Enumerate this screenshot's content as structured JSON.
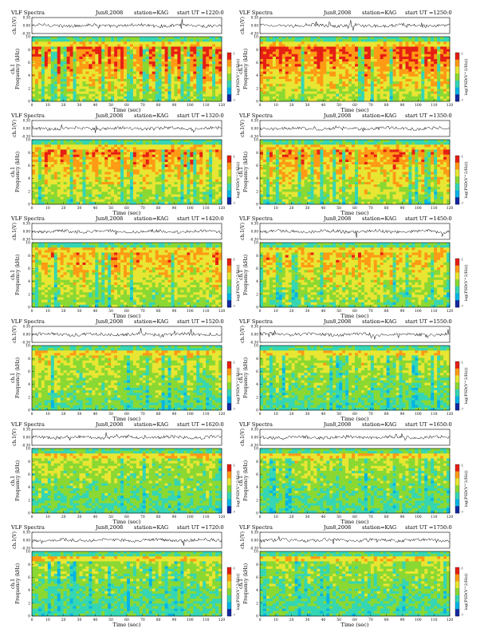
{
  "page": {
    "colors": {
      "spectrogram": [
        "#1428a0",
        "#00b4e6",
        "#34d6b4",
        "#8ad832",
        "#e8e632",
        "#ff9a14",
        "#e61e14"
      ],
      "trace": "#000000",
      "background": "#ffffff"
    }
  },
  "chart_data": [
    {
      "type": "heatmap",
      "title": "VLF Spectra",
      "date": "Jun8,2008",
      "station": "station=KAG",
      "start": "start  UT =1220:0",
      "ylabel_top": "ch.1(V)",
      "yticks_top": [
        "0.30",
        "0.00",
        "-0.30"
      ],
      "ylim_top": [
        -0.3,
        0.3
      ],
      "ylabel": "Frequency (kHz)",
      "ylabel_ch": "ch.1",
      "yticks": [
        "0",
        "2",
        "4",
        "6",
        "8",
        "10"
      ],
      "ylim": [
        0,
        10
      ],
      "xlabel": "Time (sec)",
      "xticks": [
        "0",
        "10",
        "20",
        "30",
        "40",
        "50",
        "60",
        "70",
        "80",
        "90",
        "100",
        "110",
        "120"
      ],
      "xlim": [
        0,
        120
      ],
      "colorbar_label": "log(PSD(V^2/Hz))",
      "colorbar_ticks": [
        "-1",
        "-7"
      ],
      "activity": 0.85
    },
    {
      "type": "heatmap",
      "title": "VLF Spectra",
      "date": "Jun8,2008",
      "station": "station=KAG",
      "start": "start  UT =1250:0",
      "ylabel_top": "ch.1(V)",
      "yticks_top": [
        "0.30",
        "0.00",
        "-0.30"
      ],
      "ylim_top": [
        -0.3,
        0.3
      ],
      "ylabel": "Frequency (kHz)",
      "ylabel_ch": "ch.1",
      "yticks": [
        "0",
        "2",
        "4",
        "6",
        "8",
        "10"
      ],
      "ylim": [
        0,
        10
      ],
      "xlabel": "Time (sec)",
      "xticks": [
        "0",
        "10",
        "20",
        "30",
        "40",
        "50",
        "60",
        "70",
        "80",
        "90",
        "100",
        "110",
        "120"
      ],
      "xlim": [
        0,
        120
      ],
      "colorbar_label": "log(PSD(V^2/Hz))",
      "colorbar_ticks": [
        "-1",
        "-7"
      ],
      "activity": 0.85
    },
    {
      "type": "heatmap",
      "title": "VLF Spectra",
      "date": "Jun8,2008",
      "station": "station=KAG",
      "start": "start  UT =1320:0",
      "ylabel_top": "ch.1(V)",
      "yticks_top": [
        "0.30",
        "0.00",
        "-0.30"
      ],
      "ylim_top": [
        -0.3,
        0.3
      ],
      "ylabel": "Frequency (kHz)",
      "ylabel_ch": "ch.1",
      "yticks": [
        "0",
        "2",
        "4",
        "6",
        "8",
        "10"
      ],
      "ylim": [
        0,
        10
      ],
      "xlabel": "Time (sec)",
      "xticks": [
        "0",
        "10",
        "20",
        "30",
        "40",
        "50",
        "60",
        "70",
        "80",
        "90",
        "100",
        "110",
        "120"
      ],
      "xlim": [
        0,
        120
      ],
      "colorbar_label": "log(PSD(V^2/Hz))",
      "colorbar_ticks": [
        "-1",
        "-7"
      ],
      "activity": 0.72
    },
    {
      "type": "heatmap",
      "title": "VLF Spectra",
      "date": "Jun8,2008",
      "station": "station=KAG",
      "start": "start  UT =1350:0",
      "ylabel_top": "ch.1(V)",
      "yticks_top": [
        "0.30",
        "0.00",
        "-0.30"
      ],
      "ylim_top": [
        -0.3,
        0.3
      ],
      "ylabel": "Frequency (kHz)",
      "ylabel_ch": "ch.1",
      "yticks": [
        "0",
        "2",
        "4",
        "6",
        "8",
        "10"
      ],
      "ylim": [
        0,
        10
      ],
      "xlabel": "Time (sec)",
      "xticks": [
        "0",
        "10",
        "20",
        "30",
        "40",
        "50",
        "60",
        "70",
        "80",
        "90",
        "100",
        "110",
        "120"
      ],
      "xlim": [
        0,
        120
      ],
      "colorbar_label": "log(PSD(V^2/Hz))",
      "colorbar_ticks": [
        "-1",
        "-7"
      ],
      "activity": 0.72
    },
    {
      "type": "heatmap",
      "title": "VLF Spectra",
      "date": "Jun8,2008",
      "station": "station=KAG",
      "start": "start  UT =1420:0",
      "ylabel_top": "ch.1(V)",
      "yticks_top": [
        "0.30",
        "0.00",
        "-0.30"
      ],
      "ylim_top": [
        -0.3,
        0.3
      ],
      "ylabel": "Frequency (kHz)",
      "ylabel_ch": "ch.1",
      "yticks": [
        "0",
        "2",
        "4",
        "6",
        "8",
        "10"
      ],
      "ylim": [
        0,
        10
      ],
      "xlabel": "Time (sec)",
      "xticks": [
        "0",
        "10",
        "20",
        "30",
        "40",
        "50",
        "60",
        "70",
        "80",
        "90",
        "100",
        "110",
        "120"
      ],
      "xlim": [
        0,
        120
      ],
      "colorbar_label": "log(PSD(V^2/Hz))",
      "colorbar_ticks": [
        "-1",
        "-7"
      ],
      "activity": 0.66
    },
    {
      "type": "heatmap",
      "title": "VLF Spectra",
      "date": "Jun8,2008",
      "station": "station=KAG",
      "start": "start  UT =1450:0",
      "ylabel_top": "ch.1(V)",
      "yticks_top": [
        "0.30",
        "0.00",
        "-0.30"
      ],
      "ylim_top": [
        -0.3,
        0.3
      ],
      "ylabel": "Frequency (kHz)",
      "ylabel_ch": "ch.1",
      "yticks": [
        "0",
        "2",
        "4",
        "6",
        "8",
        "10"
      ],
      "ylim": [
        0,
        10
      ],
      "xlabel": "Time (sec)",
      "xticks": [
        "0",
        "10",
        "20",
        "30",
        "40",
        "50",
        "60",
        "70",
        "80",
        "90",
        "100",
        "110",
        "120"
      ],
      "xlim": [
        0,
        120
      ],
      "colorbar_label": "log(PSD(V^2/Hz))",
      "colorbar_ticks": [
        "-1",
        "-7"
      ],
      "activity": 0.64
    },
    {
      "type": "heatmap",
      "title": "VLF Spectra",
      "date": "Jun8,2008",
      "station": "station=KAG",
      "start": "start  UT =1520:0",
      "ylabel_top": "ch.1(V)",
      "yticks_top": [
        "0.30",
        "0.00",
        "-0.30"
      ],
      "ylim_top": [
        -0.3,
        0.3
      ],
      "ylabel": "Frequency (kHz)",
      "ylabel_ch": "ch.1",
      "yticks": [
        "0",
        "2",
        "4",
        "6",
        "8",
        "10"
      ],
      "ylim": [
        0,
        10
      ],
      "xlabel": "Time (sec)",
      "xticks": [
        "0",
        "10",
        "20",
        "30",
        "40",
        "50",
        "60",
        "70",
        "80",
        "90",
        "100",
        "110",
        "120"
      ],
      "xlim": [
        0,
        120
      ],
      "colorbar_label": "log(PSD(V^2/Hz))",
      "colorbar_ticks": [
        "-1",
        "-7"
      ],
      "activity": 0.48
    },
    {
      "type": "heatmap",
      "title": "VLF Spectra",
      "date": "Jun8,2008",
      "station": "station=KAG",
      "start": "start  UT =1550:0",
      "ylabel_top": "ch.1(V)",
      "yticks_top": [
        "0.30",
        "0.00",
        "-0.30"
      ],
      "ylim_top": [
        -0.3,
        0.3
      ],
      "ylabel": "Frequency (kHz)",
      "ylabel_ch": "ch.1",
      "yticks": [
        "0",
        "2",
        "4",
        "6",
        "8",
        "10"
      ],
      "ylim": [
        0,
        10
      ],
      "xlabel": "Time (sec)",
      "xticks": [
        "0",
        "10",
        "20",
        "30",
        "40",
        "50",
        "60",
        "70",
        "80",
        "90",
        "100",
        "110",
        "120"
      ],
      "xlim": [
        0,
        120
      ],
      "colorbar_label": "log(PSD(V^2/Hz))",
      "colorbar_ticks": [
        "-1",
        "-7"
      ],
      "activity": 0.44
    },
    {
      "type": "heatmap",
      "title": "VLF Spectra",
      "date": "Jun8,2008",
      "station": "station=KAG",
      "start": "start  UT =1620:0",
      "ylabel_top": "ch.1(V)",
      "yticks_top": [
        "0.30",
        "0.00",
        "-0.30"
      ],
      "ylim_top": [
        -0.3,
        0.3
      ],
      "ylabel": "Frequency (kHz)",
      "ylabel_ch": "ch.1",
      "yticks": [
        "0",
        "2",
        "4",
        "6",
        "8",
        "10"
      ],
      "ylim": [
        0,
        10
      ],
      "xlabel": "Time (sec)",
      "xticks": [
        "0",
        "10",
        "20",
        "30",
        "40",
        "50",
        "60",
        "70",
        "80",
        "90",
        "100",
        "110",
        "120"
      ],
      "xlim": [
        0,
        120
      ],
      "colorbar_label": "log(PSD(V^2/Hz))",
      "colorbar_ticks": [
        "-1",
        "-7"
      ],
      "activity": 0.4
    },
    {
      "type": "heatmap",
      "title": "VLF Spectra",
      "date": "Jun8,2008",
      "station": "station=KAG",
      "start": "start  UT =1650:0",
      "ylabel_top": "ch.1(V)",
      "yticks_top": [
        "0.30",
        "0.00",
        "-0.30"
      ],
      "ylim_top": [
        -0.3,
        0.3
      ],
      "ylabel": "Frequency (kHz)",
      "ylabel_ch": "ch.1",
      "yticks": [
        "0",
        "2",
        "4",
        "6",
        "8",
        "10"
      ],
      "ylim": [
        0,
        10
      ],
      "xlabel": "Time (sec)",
      "xticks": [
        "0",
        "10",
        "20",
        "30",
        "40",
        "50",
        "60",
        "70",
        "80",
        "90",
        "100",
        "110",
        "120"
      ],
      "xlim": [
        0,
        120
      ],
      "colorbar_label": "log(PSD(V^2/Hz))",
      "colorbar_ticks": [
        "-1",
        "-7"
      ],
      "activity": 0.4
    },
    {
      "type": "heatmap",
      "title": "VLF Spectra",
      "date": "Jun8,2008",
      "station": "station=KAG",
      "start": "start  UT =1720:0",
      "ylabel_top": "ch.1(V)",
      "yticks_top": [
        "0.30",
        "0.00",
        "-0.30"
      ],
      "ylim_top": [
        -0.3,
        0.3
      ],
      "ylabel": "Frequency (kHz)",
      "ylabel_ch": "ch.1",
      "yticks": [
        "0",
        "2",
        "4",
        "6",
        "8",
        "10"
      ],
      "ylim": [
        0,
        10
      ],
      "xlabel": "Time (sec)",
      "xticks": [
        "0",
        "10",
        "20",
        "30",
        "40",
        "50",
        "60",
        "70",
        "80",
        "90",
        "100",
        "110",
        "120"
      ],
      "xlim": [
        0,
        120
      ],
      "colorbar_label": "log(PSD(V^2/Hz))",
      "colorbar_ticks": [
        "-1",
        "-7"
      ],
      "activity": 0.38
    },
    {
      "type": "heatmap",
      "title": "VLF Spectra",
      "date": "Jun8,2008",
      "station": "station=KAG",
      "start": "start  UT =1750:0",
      "ylabel_top": "ch.1(V)",
      "yticks_top": [
        "0.30",
        "0.00",
        "-0.30"
      ],
      "ylim_top": [
        -0.3,
        0.3
      ],
      "ylabel": "Frequency (kHz)",
      "ylabel_ch": "ch.1",
      "yticks": [
        "0",
        "2",
        "4",
        "6",
        "8",
        "10"
      ],
      "ylim": [
        0,
        10
      ],
      "xlabel": "Time (sec)",
      "xticks": [
        "0",
        "10",
        "20",
        "30",
        "40",
        "50",
        "60",
        "70",
        "80",
        "90",
        "100",
        "110",
        "120"
      ],
      "xlim": [
        0,
        120
      ],
      "colorbar_label": "log(PSD(V^2/Hz))",
      "colorbar_ticks": [
        "-1",
        "-7"
      ],
      "activity": 0.38
    }
  ]
}
